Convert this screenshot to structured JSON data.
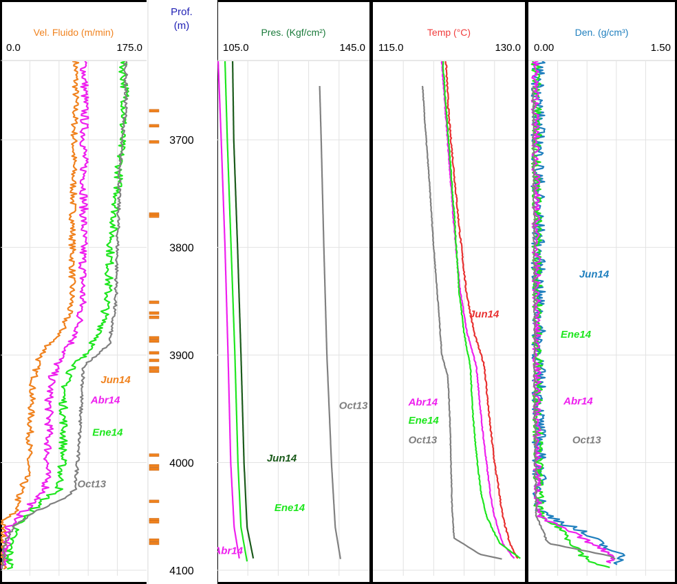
{
  "depth_track": {
    "title_line1": "Prof.",
    "title_line2": "(m)",
    "range": [
      3627,
      4100
    ],
    "ticks": [
      3700,
      3800,
      3900,
      4000,
      4100
    ],
    "title_color": "#1f1fb4",
    "perforations": [
      3673,
      3687,
      3702,
      3769,
      3771,
      3851,
      3861,
      3865,
      3884,
      3887,
      3898,
      3905,
      3912,
      3915,
      3993,
      4003,
      4006,
      4036,
      4053,
      4055,
      4072,
      4075
    ]
  },
  "chart_data": [
    {
      "type": "line",
      "title": "Vel. Fluido (m/min)",
      "title_color": "#f0821e",
      "xlim": [
        0.0,
        175.0
      ],
      "xlim_labels": [
        "0.0",
        "175.0"
      ],
      "y_axis": "depth",
      "ylim": [
        3627,
        4100
      ],
      "grid": true,
      "series": [
        {
          "name": "Jun14",
          "color": "#f0821e",
          "label_depth": 3926,
          "label_x": 120,
          "noise": 4,
          "points": [
            [
              90,
              3627
            ],
            [
              90,
              3660
            ],
            [
              88,
              3700
            ],
            [
              87,
              3750
            ],
            [
              86,
              3790
            ],
            [
              86,
              3820
            ],
            [
              85,
              3850
            ],
            [
              82,
              3860
            ],
            [
              72,
              3880
            ],
            [
              58,
              3890
            ],
            [
              45,
              3905
            ],
            [
              38,
              3930
            ],
            [
              36,
              3960
            ],
            [
              34,
              3990
            ],
            [
              32,
              4010
            ],
            [
              22,
              4030
            ],
            [
              18,
              4045
            ],
            [
              2,
              4055
            ],
            [
              4,
              4075
            ],
            [
              3,
              4100
            ]
          ]
        },
        {
          "name": "Abr14",
          "color": "#ee1fee",
          "label_depth": 3945,
          "label_x": 108,
          "noise": 5,
          "points": [
            [
              100,
              3627
            ],
            [
              101,
              3660
            ],
            [
              100,
              3700
            ],
            [
              100,
              3750
            ],
            [
              99,
              3800
            ],
            [
              98,
              3850
            ],
            [
              92,
              3880
            ],
            [
              70,
              3905
            ],
            [
              62,
              3920
            ],
            [
              58,
              3940
            ],
            [
              58,
              3970
            ],
            [
              56,
              4000
            ],
            [
              54,
              4025
            ],
            [
              42,
              4035
            ],
            [
              28,
              4045
            ],
            [
              10,
              4060
            ],
            [
              6,
              4080
            ],
            [
              4,
              4100
            ]
          ]
        },
        {
          "name": "Ene14",
          "color": "#1ee61e",
          "label_depth": 3975,
          "label_x": 110,
          "noise": 5,
          "points": [
            [
              146,
              3627
            ],
            [
              150,
              3660
            ],
            [
              145,
              3700
            ],
            [
              140,
              3750
            ],
            [
              132,
              3800
            ],
            [
              128,
              3850
            ],
            [
              120,
              3880
            ],
            [
              95,
              3905
            ],
            [
              80,
              3920
            ],
            [
              75,
              3940
            ],
            [
              76,
              3970
            ],
            [
              74,
              4000
            ],
            [
              70,
              4025
            ],
            [
              50,
              4035
            ],
            [
              38,
              4045
            ],
            [
              18,
              4060
            ],
            [
              12,
              4075
            ],
            [
              10,
              4090
            ],
            [
              12,
              4100
            ]
          ]
        },
        {
          "name": "Oct13",
          "color": "#808080",
          "label_depth": 4023,
          "label_x": 92,
          "noise": 2,
          "points": [
            [
              150,
              3627
            ],
            [
              150,
              3675
            ],
            [
              145,
              3700
            ],
            [
              142,
              3750
            ],
            [
              140,
              3800
            ],
            [
              138,
              3850
            ],
            [
              130,
              3890
            ],
            [
              100,
              3910
            ],
            [
              97,
              3940
            ],
            [
              95,
              3970
            ],
            [
              92,
              4000
            ],
            [
              90,
              4025
            ],
            [
              72,
              4035
            ],
            [
              42,
              4045
            ],
            [
              15,
              4060
            ],
            [
              5,
              4075
            ],
            [
              2,
              4100
            ]
          ]
        }
      ]
    },
    {
      "type": "line",
      "title": "Pres. (Kgf/cm²)",
      "title_color": "#1a7a3a",
      "xlim": [
        105.0,
        145.0
      ],
      "xlim_labels": [
        "105.0",
        "145.0"
      ],
      "y_axis": "depth",
      "ylim": [
        3627,
        4100
      ],
      "grid": true,
      "series": [
        {
          "name": "Abr14",
          "color": "#ee1fee",
          "label_depth": 4085,
          "label_x": 104,
          "noise": 0,
          "points": [
            [
              105.2,
              3627
            ],
            [
              106.0,
              3700
            ],
            [
              107.0,
              3800
            ],
            [
              107.8,
              3900
            ],
            [
              108.5,
              4000
            ],
            [
              109.4,
              4060
            ],
            [
              110.8,
              4090
            ]
          ]
        },
        {
          "name": "Ene14",
          "color": "#1ee61e",
          "label_depth": 4045,
          "label_x": 120,
          "noise": 0,
          "points": [
            [
              107.0,
              3627
            ],
            [
              107.6,
              3700
            ],
            [
              108.6,
              3800
            ],
            [
              109.6,
              3900
            ],
            [
              110.4,
              4000
            ],
            [
              111.2,
              4060
            ],
            [
              112.8,
              4092
            ]
          ]
        },
        {
          "name": "Jun14",
          "color": "#1a5a1a",
          "label_depth": 3999,
          "label_x": 118,
          "noise": 0,
          "points": [
            [
              109.0,
              3627
            ],
            [
              109.3,
              3700
            ],
            [
              110.3,
              3800
            ],
            [
              111.2,
              3900
            ],
            [
              112.0,
              4000
            ],
            [
              112.8,
              4060
            ],
            [
              114.5,
              4090
            ]
          ]
        },
        {
          "name": "Oct13",
          "color": "#808080",
          "label_depth": 3950,
          "label_x": 137,
          "noise": 0,
          "points": [
            [
              131.9,
              3650
            ],
            [
              132.3,
              3700
            ],
            [
              133.0,
              3800
            ],
            [
              133.8,
              3900
            ],
            [
              135.0,
              4000
            ],
            [
              136.0,
              4060
            ],
            [
              137.4,
              4090
            ]
          ]
        }
      ]
    },
    {
      "type": "line",
      "title": "Temp (°C)",
      "title_color": "#f03c3c",
      "xlim": [
        115.0,
        130.0
      ],
      "xlim_labels": [
        "115.0",
        "130.0"
      ],
      "y_axis": "depth",
      "ylim": [
        3627,
        4100
      ],
      "grid": true,
      "series": [
        {
          "name": "Jun14",
          "color": "#e83030",
          "label_depth": 3865,
          "label_x": 124.5,
          "noise": 0.06,
          "points": [
            [
              122.2,
              3627
            ],
            [
              122.5,
              3680
            ],
            [
              123.0,
              3730
            ],
            [
              123.5,
              3780
            ],
            [
              124.2,
              3840
            ],
            [
              125.0,
              3880
            ],
            [
              126.0,
              3910
            ],
            [
              126.5,
              3960
            ],
            [
              127.0,
              4000
            ],
            [
              127.5,
              4030
            ],
            [
              127.8,
              4050
            ],
            [
              128.5,
              4075
            ],
            [
              129.3,
              4090
            ]
          ]
        },
        {
          "name": "Abr14",
          "color": "#ee1fee",
          "label_depth": 3947,
          "label_x": 118.5,
          "noise": 0.04,
          "points": [
            [
              121.8,
              3627
            ],
            [
              122.2,
              3680
            ],
            [
              122.6,
              3730
            ],
            [
              123.0,
              3780
            ],
            [
              123.6,
              3840
            ],
            [
              124.3,
              3880
            ],
            [
              125.2,
              3910
            ],
            [
              125.7,
              3960
            ],
            [
              126.2,
              4000
            ],
            [
              126.6,
              4030
            ],
            [
              127.0,
              4050
            ],
            [
              127.8,
              4075
            ],
            [
              129.0,
              4090
            ]
          ]
        },
        {
          "name": "Ene14",
          "color": "#1ee61e",
          "label_depth": 3964,
          "label_x": 118.5,
          "noise": 0.04,
          "points": [
            [
              121.9,
              3627
            ],
            [
              122.3,
              3680
            ],
            [
              122.7,
              3730
            ],
            [
              123.1,
              3780
            ],
            [
              123.5,
              3840
            ],
            [
              124.0,
              3880
            ],
            [
              124.6,
              3910
            ],
            [
              124.9,
              3960
            ],
            [
              125.3,
              4000
            ],
            [
              125.7,
              4030
            ],
            [
              126.2,
              4050
            ],
            [
              127.5,
              4075
            ],
            [
              129.7,
              4090
            ]
          ]
        },
        {
          "name": "Oct13",
          "color": "#808080",
          "label_depth": 3982,
          "label_x": 118.5,
          "noise": 0.03,
          "points": [
            [
              119.9,
              3650
            ],
            [
              120.1,
              3680
            ],
            [
              120.5,
              3730
            ],
            [
              121.0,
              3800
            ],
            [
              121.5,
              3860
            ],
            [
              121.8,
              3900
            ],
            [
              122.4,
              3920
            ],
            [
              122.6,
              3960
            ],
            [
              122.7,
              4000
            ],
            [
              122.8,
              4040
            ],
            [
              123.0,
              4070
            ],
            [
              125.5,
              4085
            ],
            [
              127.9,
              4090
            ]
          ]
        }
      ]
    },
    {
      "type": "line",
      "title": "Den. (g/cm³)",
      "title_color": "#1f7fbe",
      "xlim": [
        0.0,
        1.5
      ],
      "xlim_labels": [
        "0.00",
        "1.50"
      ],
      "y_axis": "depth",
      "ylim": [
        3627,
        4100
      ],
      "grid": true,
      "series": [
        {
          "name": "Jun14",
          "color": "#1f7fbe",
          "label_depth": 3828,
          "label_x": 0.52,
          "noise": 0.07,
          "points": [
            [
              0.1,
              3627
            ],
            [
              0.1,
              3800
            ],
            [
              0.11,
              4000
            ],
            [
              0.12,
              4045
            ],
            [
              0.5,
              4062
            ],
            [
              0.95,
              4087
            ],
            [
              0.92,
              4095
            ]
          ]
        },
        {
          "name": "Ene14",
          "color": "#1ee61e",
          "label_depth": 3884,
          "label_x": 0.33,
          "noise": 0.05,
          "points": [
            [
              0.08,
              3627
            ],
            [
              0.09,
              3800
            ],
            [
              0.1,
              4000
            ],
            [
              0.11,
              4050
            ],
            [
              0.32,
              4060
            ],
            [
              0.6,
              4090
            ],
            [
              0.82,
              4098
            ]
          ]
        },
        {
          "name": "Abr14",
          "color": "#ee1fee",
          "label_depth": 3946,
          "label_x": 0.36,
          "noise": 0.04,
          "points": [
            [
              0.07,
              3627
            ],
            [
              0.08,
              3800
            ],
            [
              0.09,
              4000
            ],
            [
              0.1,
              4050
            ],
            [
              0.45,
              4065
            ],
            [
              0.9,
              4088
            ],
            [
              0.8,
              4094
            ]
          ]
        },
        {
          "name": "Oct13",
          "color": "#808080",
          "label_depth": 3982,
          "label_x": 0.45,
          "noise": 0.01,
          "points": [
            [
              0.05,
              3650
            ],
            [
              0.06,
              3800
            ],
            [
              0.07,
              4000
            ],
            [
              0.08,
              4050
            ],
            [
              0.2,
              4075
            ],
            [
              0.85,
              4087
            ],
            [
              0.9,
              4090
            ]
          ]
        }
      ]
    }
  ]
}
